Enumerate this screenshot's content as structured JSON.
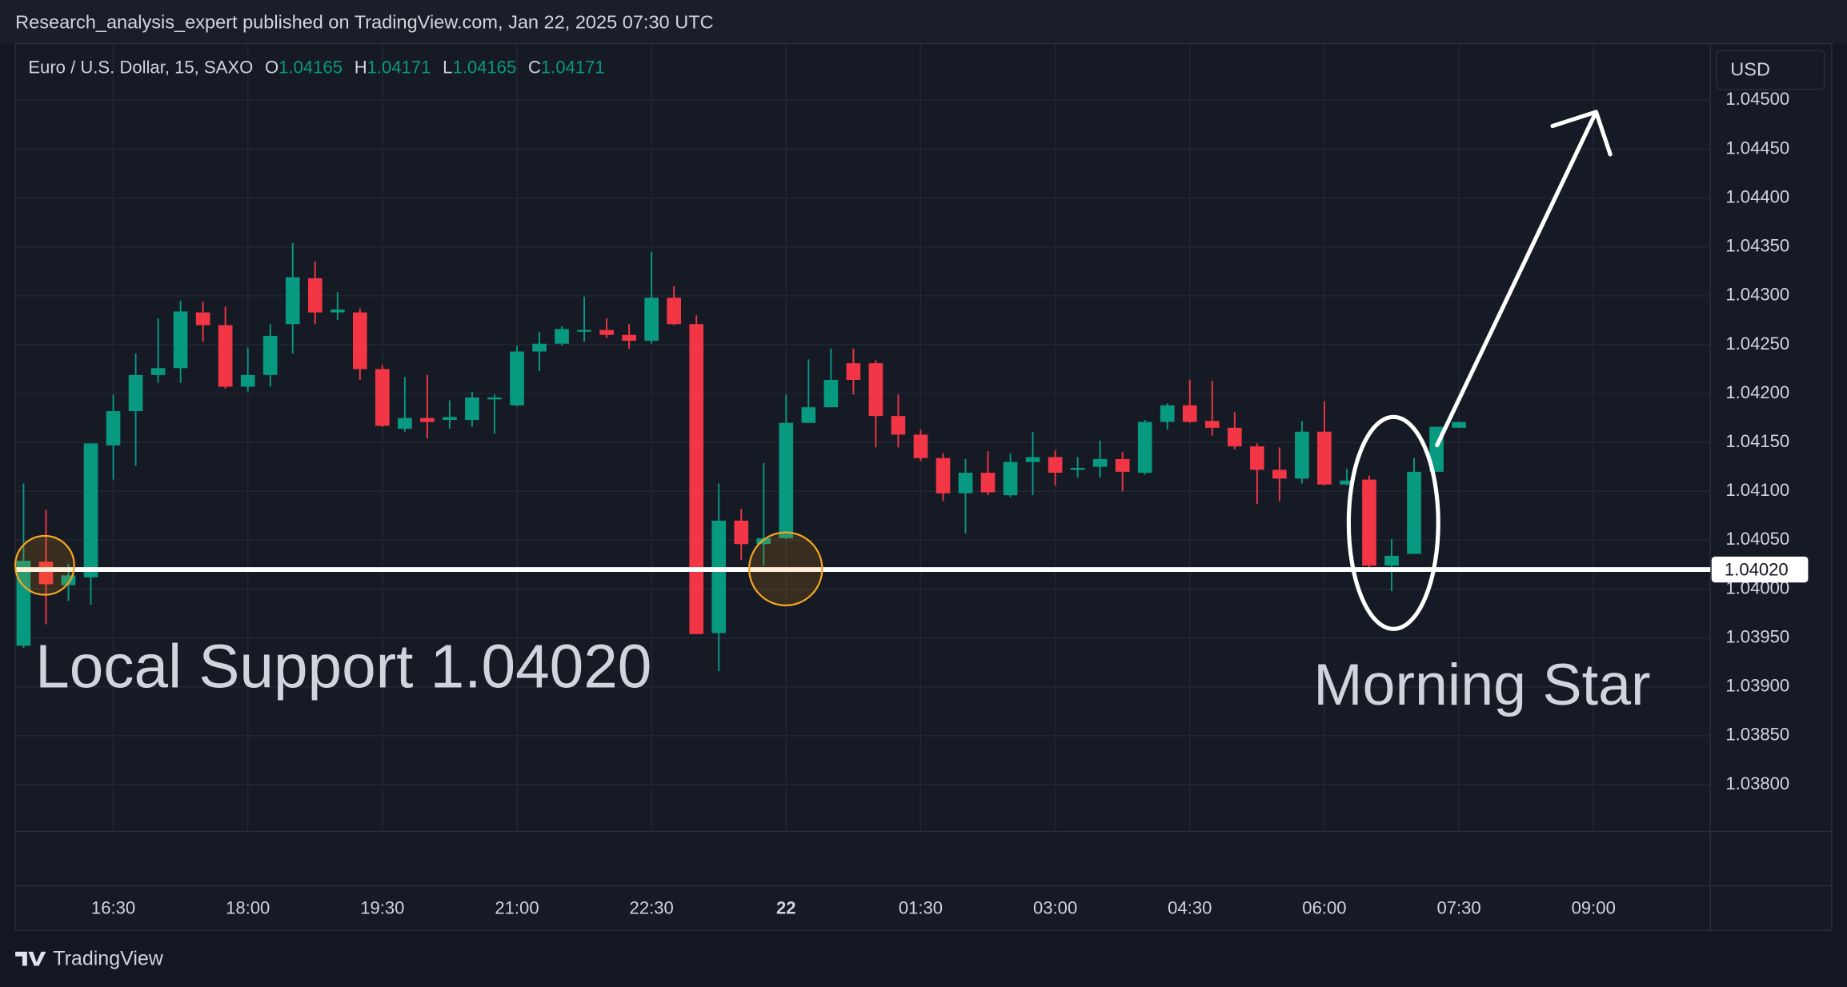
{
  "header": {
    "published": "Research_analysis_expert published on TradingView.com, Jan 22, 2025 07:30 UTC"
  },
  "footer": {
    "brand": "TradingView"
  },
  "chart_data": {
    "type": "candlestick",
    "symbol": "Euro / U.S. Dollar, 15, SAXO",
    "ohlc_labels": [
      "O",
      "H",
      "L",
      "C"
    ],
    "currency": "USD",
    "up_color": "#089981",
    "down_color": "#f23645",
    "grid": true,
    "categories": [
      null,
      null,
      null,
      null,
      "16:30",
      null,
      null,
      null,
      null,
      null,
      "18:00",
      null,
      null,
      null,
      null,
      null,
      "19:30",
      null,
      null,
      null,
      null,
      null,
      "21:00",
      null,
      null,
      null,
      null,
      null,
      "22:30",
      null,
      null,
      null,
      null,
      null,
      "22",
      null,
      null,
      null,
      null,
      null,
      "01:30",
      null,
      null,
      null,
      null,
      null,
      "03:00",
      null,
      null,
      null,
      null,
      null,
      "04:30",
      null,
      null,
      null,
      null,
      null,
      "06:00",
      null,
      null,
      null,
      null,
      null,
      "07:30",
      null,
      null,
      null,
      null,
      null,
      "09:00"
    ],
    "open": [
      1.03942,
      1.04028,
      1.04004,
      1.04012,
      1.04147,
      1.04182,
      1.04219,
      1.04226,
      1.04283,
      1.0427,
      1.04207,
      1.04219,
      1.04271,
      1.04318,
      1.04283,
      1.04283,
      1.04225,
      1.04164,
      1.04175,
      1.04173,
      1.04173,
      1.04194,
      1.04188,
      1.04243,
      1.04251,
      1.04264,
      1.04265,
      1.0426,
      1.04254,
      1.04298,
      1.04271,
      1.03955,
      1.0407,
      1.04046,
      1.04052,
      1.0417,
      1.04186,
      1.04231,
      1.04231,
      1.04177,
      1.04158,
      1.04134,
      1.04098,
      1.04119,
      1.04096,
      1.0413,
      1.04135,
      1.04122,
      1.04125,
      1.04133,
      1.04119,
      1.04171,
      1.04188,
      1.04172,
      1.04165,
      1.04146,
      1.04122,
      1.04113,
      1.04161,
      1.04107,
      1.04112,
      1.04024,
      1.04036,
      1.0412,
      1.04165,
      null,
      null,
      null,
      null,
      null,
      null
    ],
    "high": [
      1.04108,
      1.04081,
      1.04026,
      1.04149,
      1.04199,
      1.04241,
      1.04277,
      1.04295,
      1.04294,
      1.04289,
      1.04247,
      1.04271,
      1.04354,
      1.04335,
      1.04304,
      1.04287,
      1.04229,
      1.04217,
      1.04219,
      1.04193,
      1.04202,
      1.04199,
      1.04249,
      1.04263,
      1.04269,
      1.04299,
      1.04277,
      1.04271,
      1.04345,
      1.0431,
      1.0428,
      1.04108,
      1.04082,
      1.04129,
      1.04199,
      1.04235,
      1.04246,
      1.04246,
      1.04234,
      1.04199,
      1.04163,
      1.04139,
      1.04133,
      1.04141,
      1.04139,
      1.04161,
      1.04142,
      1.04135,
      1.04152,
      1.0414,
      1.04173,
      1.0419,
      1.04214,
      1.04213,
      1.04181,
      1.04149,
      1.04145,
      1.04172,
      1.04192,
      1.04123,
      1.04116,
      1.04051,
      1.04134,
      1.04166,
      1.04171,
      null,
      null,
      null,
      null,
      null,
      null
    ],
    "low": [
      1.0394,
      1.03964,
      1.03988,
      1.03984,
      1.04112,
      1.04126,
      1.04211,
      1.04211,
      1.04253,
      1.04205,
      1.04202,
      1.04207,
      1.04241,
      1.04271,
      1.04275,
      1.04214,
      1.04166,
      1.04161,
      1.04154,
      1.04164,
      1.04166,
      1.04159,
      1.04187,
      1.04223,
      1.04249,
      1.04253,
      1.04257,
      1.04246,
      1.04251,
      1.0427,
      1.03954,
      1.03916,
      1.0403,
      1.04024,
      1.04051,
      1.0417,
      1.04186,
      1.04199,
      1.04145,
      1.04145,
      1.04131,
      1.0409,
      1.04057,
      1.04096,
      1.04094,
      1.04096,
      1.04106,
      1.04114,
      1.04114,
      1.041,
      1.04117,
      1.04163,
      1.0417,
      1.04157,
      1.04143,
      1.04087,
      1.0409,
      1.04108,
      1.04106,
      1.04106,
      1.04022,
      1.03998,
      1.04036,
      1.0412,
      1.04165,
      null,
      null,
      null,
      null,
      null,
      null
    ],
    "close": [
      1.04029,
      1.04005,
      1.04014,
      1.04149,
      1.04182,
      1.04219,
      1.04226,
      1.04284,
      1.0427,
      1.04207,
      1.04219,
      1.04259,
      1.04319,
      1.04283,
      1.04286,
      1.04225,
      1.04167,
      1.04175,
      1.04171,
      1.04176,
      1.04196,
      1.04196,
      1.04243,
      1.04251,
      1.04266,
      1.04265,
      1.0426,
      1.04254,
      1.04298,
      1.04271,
      1.03954,
      1.0407,
      1.04046,
      1.04052,
      1.0417,
      1.04186,
      1.04214,
      1.04214,
      1.04177,
      1.04158,
      1.04134,
      1.04098,
      1.04119,
      1.04099,
      1.0413,
      1.04135,
      1.04119,
      1.04124,
      1.04133,
      1.0412,
      1.04171,
      1.04188,
      1.04171,
      1.04165,
      1.04146,
      1.04122,
      1.04113,
      1.04161,
      1.04107,
      1.04111,
      1.04024,
      1.04034,
      1.0412,
      1.04166,
      1.04171,
      null,
      null,
      null,
      null,
      null,
      null
    ],
    "ylim": [
      1.03752,
      1.04558
    ],
    "yticks": [
      {
        "value": 1.038,
        "label": "1.03800"
      },
      {
        "value": 1.0385,
        "label": "1.03850"
      },
      {
        "value": 1.039,
        "label": "1.03900"
      },
      {
        "value": 1.0395,
        "label": "1.03950"
      },
      {
        "value": 1.04,
        "label": "1.04000"
      },
      {
        "value": 1.0405,
        "label": "1.04050"
      },
      {
        "value": 1.041,
        "label": "1.04100"
      },
      {
        "value": 1.0415,
        "label": "1.04150"
      },
      {
        "value": 1.042,
        "label": "1.04200"
      },
      {
        "value": 1.0425,
        "label": "1.04250"
      },
      {
        "value": 1.043,
        "label": "1.04300"
      },
      {
        "value": 1.0435,
        "label": "1.04350"
      },
      {
        "value": 1.044,
        "label": "1.04400"
      },
      {
        "value": 1.0445,
        "label": "1.04450"
      },
      {
        "value": 1.045,
        "label": "1.04500"
      }
    ],
    "support_line": {
      "value": 1.0402,
      "label": "1.04020"
    },
    "annotations": [
      "Local Support 1.04020",
      "Morning Star"
    ]
  }
}
